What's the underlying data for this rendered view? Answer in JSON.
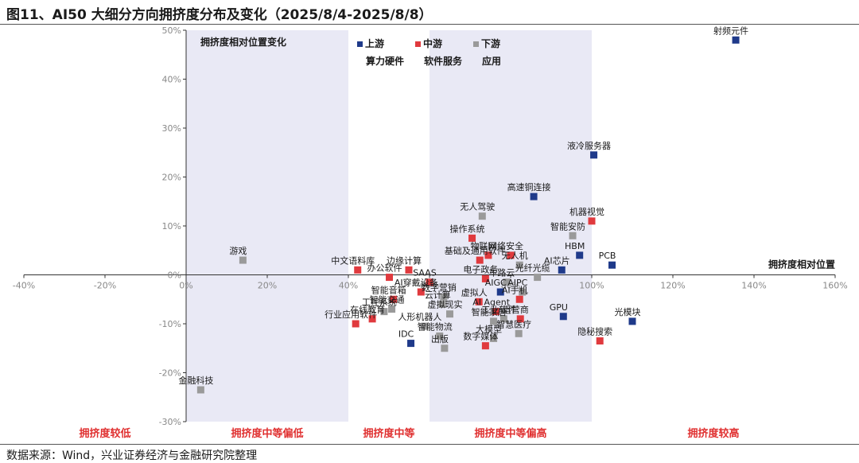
{
  "header": {
    "title": "图11、AI50 大细分方向拥挤度分布及变化（2025/8/4-2025/8/8）"
  },
  "footer": {
    "source": "数据来源：Wind，兴业证券经济与金融研究院整理"
  },
  "colors": {
    "upstream": "#1f3a8a",
    "midstream": "#e03a3e",
    "downstream": "#9a9a9a",
    "band": "#e9e9f5",
    "zone_text": "#e03030"
  },
  "chart_data": {
    "type": "scatter",
    "title": "拥挤度相对位置变化",
    "xlabel": "拥挤度相对位置",
    "xlim": [
      -40,
      160
    ],
    "ylim": [
      -30,
      50
    ],
    "x_ticks": [
      "-40%",
      "-20%",
      "0%",
      "20%",
      "40%",
      "60%",
      "80%",
      "100%",
      "120%",
      "140%",
      "160%"
    ],
    "y_ticks": [
      "-30%",
      "-20%",
      "-10%",
      "0%",
      "10%",
      "20%",
      "30%",
      "40%",
      "50%"
    ],
    "shaded_bands": [
      [
        0,
        40
      ],
      [
        60,
        100
      ]
    ],
    "zones": [
      {
        "label": "拥挤度较低",
        "x": -20
      },
      {
        "label": "拥挤度中等偏低",
        "x": 20
      },
      {
        "label": "拥挤度中等",
        "x": 50
      },
      {
        "label": "拥挤度中等偏高",
        "x": 80
      },
      {
        "label": "拥挤度较高",
        "x": 130
      }
    ],
    "legend": [
      {
        "key": "upstream",
        "name": "上游",
        "sub": "算力硬件"
      },
      {
        "key": "midstream",
        "name": "中游",
        "sub": "软件服务"
      },
      {
        "key": "downstream",
        "name": "下游",
        "sub": "应用"
      }
    ],
    "points": [
      {
        "label": "射频元件",
        "x": 135.5,
        "y": 48,
        "g": "upstream"
      },
      {
        "label": "液冷服务器",
        "x": 100.5,
        "y": 24.5,
        "g": "upstream"
      },
      {
        "label": "高速铜连接",
        "x": 85.7,
        "y": 16,
        "g": "upstream"
      },
      {
        "label": "HBM",
        "x": 97,
        "y": 4,
        "g": "upstream"
      },
      {
        "label": "AI芯片",
        "x": 92.6,
        "y": 1,
        "g": "upstream"
      },
      {
        "label": "PCB",
        "x": 105,
        "y": 2,
        "g": "upstream"
      },
      {
        "label": "光模块",
        "x": 110,
        "y": -9.5,
        "g": "upstream"
      },
      {
        "label": "GPU",
        "x": 93,
        "y": -8.5,
        "g": "upstream"
      },
      {
        "label": "IDC",
        "x": 55.4,
        "y": -14,
        "g": "upstream"
      },
      {
        "label": "AIGC",
        "x": 77.5,
        "y": -3.5,
        "g": "upstream"
      },
      {
        "label": "机器视觉",
        "x": 100,
        "y": 11,
        "g": "midstream"
      },
      {
        "label": "网络安全",
        "x": 80,
        "y": 4,
        "g": "midstream"
      },
      {
        "label": "物联网",
        "x": 74.5,
        "y": 4,
        "g": "midstream"
      },
      {
        "label": "操作系统",
        "x": 70.5,
        "y": 7.5,
        "g": "midstream"
      },
      {
        "label": "基础及通用软件",
        "x": 72.4,
        "y": 3,
        "g": "midstream"
      },
      {
        "label": "边缘计算",
        "x": 54.9,
        "y": 1,
        "g": "midstream"
      },
      {
        "label": "中文语料库",
        "x": 42.3,
        "y": 1,
        "g": "midstream"
      },
      {
        "label": "办公软件",
        "x": 50.1,
        "y": -0.5,
        "g": "midstream"
      },
      {
        "label": "SAAS",
        "x": 60,
        "y": -1.5,
        "g": "midstream"
      },
      {
        "label": "电子政务",
        "x": 73.8,
        "y": -0.8,
        "g": "midstream"
      },
      {
        "label": "隐秘搜索",
        "x": 102,
        "y": -13.5,
        "g": "midstream"
      },
      {
        "label": "AI手机",
        "x": 82.2,
        "y": -5,
        "g": "midstream"
      },
      {
        "label": "AI Agent",
        "x": 76.4,
        "y": -7.5,
        "g": "midstream"
      },
      {
        "label": "虚拟人",
        "x": 72.2,
        "y": -5.5,
        "g": "midstream"
      },
      {
        "label": "智能音箱",
        "x": 51.1,
        "y": -5,
        "g": "midstream"
      },
      {
        "label": "在线教育",
        "x": 45.9,
        "y": -9,
        "g": "midstream"
      },
      {
        "label": "行业应用软件",
        "x": 41.8,
        "y": -10,
        "g": "midstream"
      },
      {
        "label": "AI穿戴设备",
        "x": 57.9,
        "y": -3.5,
        "g": "midstream"
      },
      {
        "label": "数字媒体",
        "x": 73.8,
        "y": -14.5,
        "g": "midstream"
      },
      {
        "label": "运营商",
        "x": 82.4,
        "y": -9,
        "g": "midstream"
      },
      {
        "label": "游戏",
        "x": 14,
        "y": 3,
        "g": "downstream"
      },
      {
        "label": "金融科技",
        "x": 3.6,
        "y": -23.5,
        "g": "downstream"
      },
      {
        "label": "无人驾驶",
        "x": 73,
        "y": 12,
        "g": "downstream"
      },
      {
        "label": "智能安防",
        "x": 95.3,
        "y": 8,
        "g": "downstream"
      },
      {
        "label": "无人机",
        "x": 82.2,
        "y": 2,
        "g": "downstream"
      },
      {
        "label": "车路云",
        "x": 79,
        "y": -1.5,
        "g": "downstream"
      },
      {
        "label": "光纤光缆",
        "x": 86.6,
        "y": -0.5,
        "g": "downstream"
      },
      {
        "label": "AIPC",
        "x": 82.9,
        "y": -3.5,
        "g": "downstream"
      },
      {
        "label": "数字营销",
        "x": 63.5,
        "y": -4.5,
        "g": "downstream"
      },
      {
        "label": "智能交通",
        "x": 50.7,
        "y": -7,
        "g": "downstream"
      },
      {
        "label": "工控系统",
        "x": 48.8,
        "y": -7.5,
        "g": "downstream"
      },
      {
        "label": "云计算",
        "x": 63.2,
        "y": -6,
        "g": "downstream"
      },
      {
        "label": "虚拟现实",
        "x": 65,
        "y": -8,
        "g": "downstream"
      },
      {
        "label": "工业软件",
        "x": 78.3,
        "y": -9,
        "g": "downstream"
      },
      {
        "label": "智能家居",
        "x": 75.8,
        "y": -9.5,
        "g": "downstream"
      },
      {
        "label": "智慧医疗",
        "x": 82,
        "y": -12,
        "g": "downstream"
      },
      {
        "label": "人形机器人",
        "x": 58.8,
        "y": -10.5,
        "g": "downstream"
      },
      {
        "label": "智能物流",
        "x": 62.5,
        "y": -12.5,
        "g": "downstream"
      },
      {
        "label": "出版",
        "x": 63.7,
        "y": -15,
        "g": "downstream"
      },
      {
        "label": "大模型",
        "x": 75.8,
        "y": -13,
        "g": "downstream"
      }
    ]
  }
}
